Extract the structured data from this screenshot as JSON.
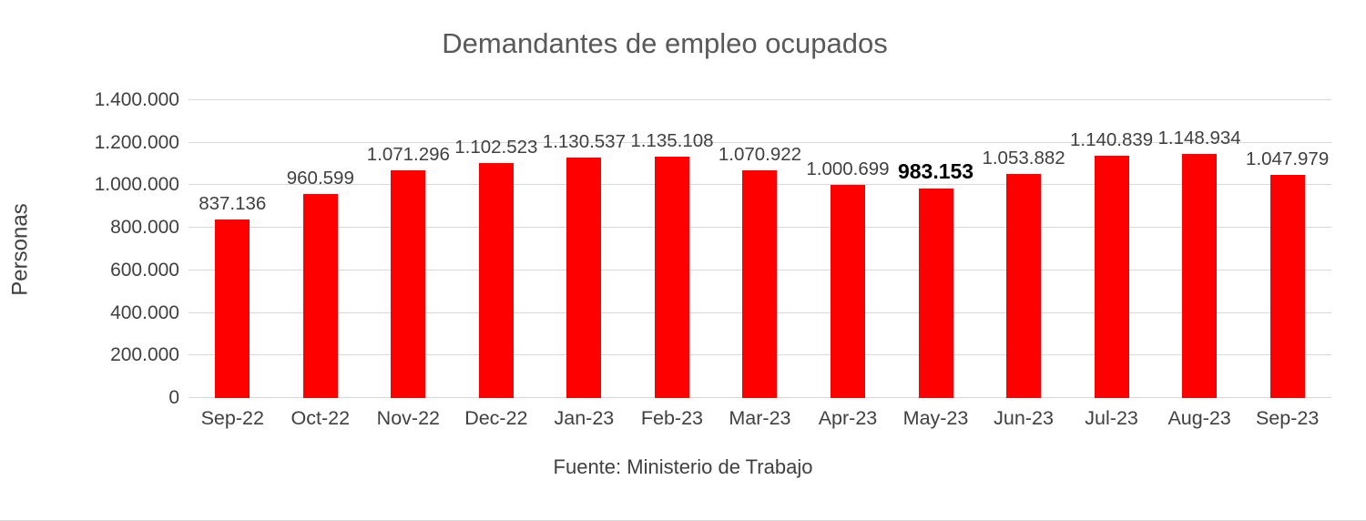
{
  "chart_data": {
    "type": "bar",
    "title": "Demandantes de empleo ocupados",
    "ylabel": "Personas",
    "source": "Fuente: Ministerio de Trabajo",
    "categories": [
      "Sep-22",
      "Oct-22",
      "Nov-22",
      "Dec-22",
      "Jan-23",
      "Feb-23",
      "Mar-23",
      "Apr-23",
      "May-23",
      "Jun-23",
      "Jul-23",
      "Aug-23",
      "Sep-23"
    ],
    "values": [
      837136,
      960599,
      1071296,
      1102523,
      1130537,
      1135108,
      1070922,
      1000699,
      983153,
      1053882,
      1140839,
      1148934,
      1047979
    ],
    "labels": [
      "837.136",
      "960.599",
      "1.071.296",
      "1.102.523",
      "1.130.537",
      "1.135.108",
      "1.070.922",
      "1.000.699",
      "983.153",
      "1.053.882",
      "1.140.839",
      "1.148.934",
      "1.047.979"
    ],
    "emphasized_index": 8,
    "ylim": [
      0,
      1400000
    ],
    "yticks": [
      0,
      200000,
      400000,
      600000,
      800000,
      1000000,
      1200000,
      1400000
    ],
    "ytick_labels": [
      "0",
      "200.000",
      "400.000",
      "600.000",
      "800.000",
      "1.000.000",
      "1.200.000",
      "1.400.000"
    ],
    "bar_color": "#fe0000",
    "grid": true,
    "legend": false
  }
}
